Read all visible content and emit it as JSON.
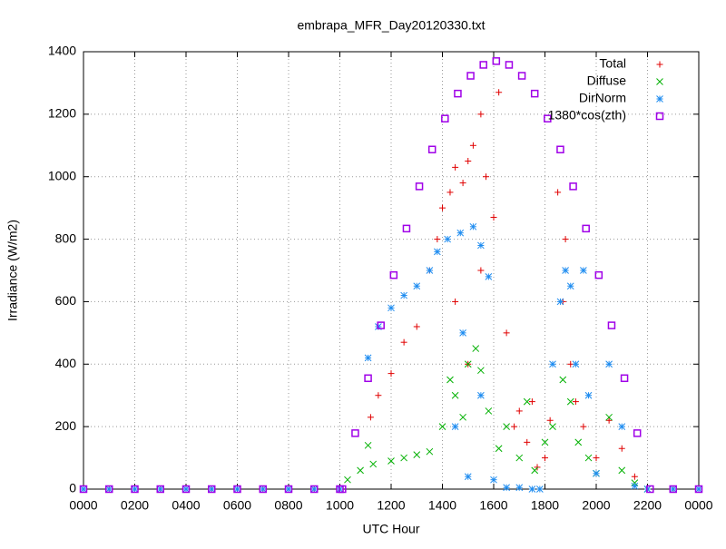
{
  "chart_data": {
    "type": "scatter",
    "title": "embrapa_MFR_Day20120330.txt",
    "x_label": "UTC Hour",
    "y_label": "Irradiance (W/m2)",
    "xlim": [
      0,
      2400
    ],
    "ylim": [
      0,
      1400
    ],
    "xticks": [
      {
        "value": 0,
        "label": "0000"
      },
      {
        "value": 200,
        "label": "0200"
      },
      {
        "value": 400,
        "label": "0400"
      },
      {
        "value": 600,
        "label": "0600"
      },
      {
        "value": 800,
        "label": "0800"
      },
      {
        "value": 1000,
        "label": "1000"
      },
      1200,
      1400,
      1600,
      1800,
      2000,
      2200,
      {
        "value": 2400,
        "label": "0000"
      }
    ],
    "yticks": [
      0,
      200,
      400,
      600,
      800,
      1000,
      1200,
      1400
    ],
    "grid": true,
    "legend": "top-right",
    "series": [
      {
        "name": "Total",
        "color": "#e00000",
        "marker": "plus",
        "x": [
          0,
          100,
          200,
          300,
          400,
          500,
          600,
          700,
          800,
          900,
          1000,
          1120,
          1150,
          1200,
          1250,
          1300,
          1350,
          1380,
          1400,
          1430,
          1450,
          1480,
          1500,
          1520,
          1550,
          1570,
          1600,
          1620,
          1650,
          1680,
          1700,
          1730,
          1750,
          1770,
          1800,
          1820,
          1850,
          1870,
          1880,
          1900,
          1920,
          1950,
          2000,
          2050,
          2100,
          2150,
          2200,
          2300,
          2400,
          1450,
          1500,
          1550
        ],
        "values": [
          0,
          0,
          0,
          0,
          0,
          0,
          0,
          0,
          0,
          0,
          0,
          230,
          300,
          370,
          470,
          520,
          700,
          800,
          900,
          950,
          1030,
          980,
          1050,
          1100,
          1200,
          1000,
          870,
          1270,
          500,
          200,
          250,
          150,
          280,
          70,
          100,
          220,
          950,
          600,
          800,
          400,
          280,
          200,
          100,
          220,
          130,
          40,
          0,
          0,
          0,
          600,
          400,
          700
        ]
      },
      {
        "name": "Diffuse",
        "color": "#00b000",
        "marker": "cross",
        "x": [
          1030,
          1080,
          1110,
          1130,
          1200,
          1250,
          1300,
          1350,
          1400,
          1430,
          1450,
          1480,
          1500,
          1530,
          1550,
          1580,
          1620,
          1650,
          1700,
          1730,
          1760,
          1800,
          1830,
          1870,
          1900,
          1930,
          1970,
          2000,
          2050,
          2100,
          2150,
          2200
        ],
        "values": [
          30,
          60,
          140,
          80,
          90,
          100,
          110,
          120,
          200,
          350,
          300,
          230,
          400,
          450,
          380,
          250,
          130,
          200,
          100,
          280,
          60,
          150,
          200,
          350,
          280,
          150,
          100,
          50,
          230,
          60,
          20,
          0
        ]
      },
      {
        "name": "DirNorm",
        "color": "#1e8cf0",
        "marker": "star",
        "x": [
          0,
          100,
          200,
          300,
          400,
          500,
          600,
          700,
          800,
          900,
          1000,
          1110,
          1150,
          1200,
          1250,
          1300,
          1350,
          1380,
          1420,
          1470,
          1520,
          1550,
          1580,
          1600,
          1650,
          1700,
          1750,
          1780,
          1830,
          1860,
          1880,
          1900,
          1920,
          1950,
          1970,
          2000,
          2050,
          2100,
          2150,
          2200,
          2300,
          2400,
          1450,
          1480,
          1500,
          1550
        ],
        "values": [
          0,
          0,
          0,
          0,
          0,
          0,
          0,
          0,
          0,
          0,
          0,
          420,
          520,
          580,
          620,
          650,
          700,
          760,
          800,
          820,
          840,
          780,
          680,
          30,
          5,
          5,
          0,
          0,
          400,
          600,
          700,
          650,
          400,
          700,
          300,
          50,
          400,
          200,
          10,
          0,
          0,
          0,
          200,
          500,
          40,
          300
        ]
      },
      {
        "name": "1380*cos(zth)",
        "color": "#a000e8",
        "marker": "square",
        "x": [
          0,
          100,
          200,
          300,
          400,
          500,
          600,
          700,
          800,
          900,
          1000,
          1010,
          1060,
          1110,
          1160,
          1210,
          1260,
          1310,
          1360,
          1410,
          1460,
          1510,
          1560,
          1610,
          1660,
          1710,
          1760,
          1810,
          1860,
          1910,
          1960,
          2010,
          2060,
          2110,
          2160,
          2210,
          2300,
          2400
        ],
        "values": [
          0,
          0,
          0,
          0,
          0,
          0,
          0,
          0,
          0,
          0,
          0,
          0,
          179,
          355,
          524,
          685,
          834,
          969,
          1087,
          1186,
          1266,
          1323,
          1358,
          1370,
          1358,
          1323,
          1266,
          1186,
          1087,
          969,
          834,
          685,
          524,
          355,
          179,
          0,
          0,
          0
        ]
      }
    ]
  }
}
